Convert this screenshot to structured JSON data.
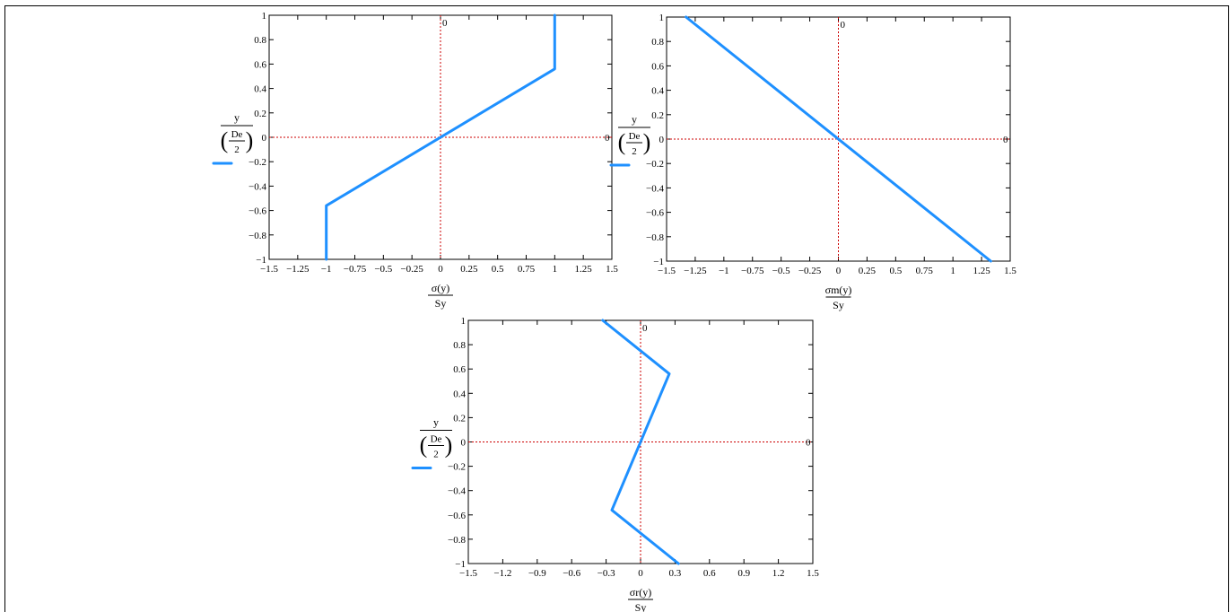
{
  "chart_data": [
    {
      "type": "line",
      "xlabel_num": "σ(y)",
      "xlabel_den": "Sy",
      "ylabel_num": "y",
      "ylabel_inner_num": "De",
      "ylabel_inner_den": "2",
      "xlim": [
        -1.5,
        1.5
      ],
      "ylim": [
        -1,
        1
      ],
      "x_ticks": [
        "−1.5",
        "−1.25",
        "−1",
        "−0.75",
        "−0.5",
        "−0.25",
        "0",
        "0.25",
        "0.5",
        "0.75",
        "1",
        "1.25",
        "1.5"
      ],
      "x_tick_values": [
        -1.5,
        -1.25,
        -1,
        -0.75,
        -0.5,
        -0.25,
        0,
        0.25,
        0.5,
        0.75,
        1,
        1.25,
        1.5
      ],
      "y_ticks": [
        "1",
        "0.8",
        "0.6",
        "0.4",
        "0.2",
        "0",
        "−0.2",
        "−0.4",
        "−0.6",
        "−0.8",
        "−1"
      ],
      "y_tick_values": [
        1,
        0.8,
        0.6,
        0.4,
        0.2,
        0,
        -0.2,
        -0.4,
        -0.6,
        -0.8,
        -1
      ],
      "marker_label": "0",
      "color": "#1e90ff",
      "grid": false,
      "series": [
        {
          "x": [
            -1,
            -1,
            1,
            1
          ],
          "y": [
            -1,
            -0.56,
            0.56,
            1
          ]
        }
      ]
    },
    {
      "type": "line",
      "xlabel_num": "σm(y)",
      "xlabel_den": "Sy",
      "ylabel_num": "y",
      "ylabel_inner_num": "De",
      "ylabel_inner_den": "2",
      "xlim": [
        -1.5,
        1.5
      ],
      "ylim": [
        -1,
        1
      ],
      "x_ticks": [
        "−1.5",
        "−1.25",
        "−1",
        "−0.75",
        "−0.5",
        "−0.25",
        "0",
        "0.25",
        "0.5",
        "0.75",
        "1",
        "1.25",
        "1.5"
      ],
      "x_tick_values": [
        -1.5,
        -1.25,
        -1,
        -0.75,
        -0.5,
        -0.25,
        0,
        0.25,
        0.5,
        0.75,
        1,
        1.25,
        1.5
      ],
      "y_ticks": [
        "1",
        "0.8",
        "0.6",
        "0.4",
        "0.2",
        "0",
        "−0.2",
        "−0.4",
        "−0.6",
        "−0.8",
        "−1"
      ],
      "y_tick_values": [
        1,
        0.8,
        0.6,
        0.4,
        0.2,
        0,
        -0.2,
        -0.4,
        -0.6,
        -0.8,
        -1
      ],
      "marker_label": "0",
      "color": "#1e90ff",
      "grid": false,
      "series": [
        {
          "x": [
            -1.33,
            1.33
          ],
          "y": [
            1,
            -1
          ]
        }
      ]
    },
    {
      "type": "line",
      "xlabel_num": "σr(y)",
      "xlabel_den": "Sy",
      "ylabel_num": "y",
      "ylabel_inner_num": "De",
      "ylabel_inner_den": "2",
      "xlim": [
        -1.5,
        1.5
      ],
      "ylim": [
        -1,
        1
      ],
      "x_ticks": [
        "−1.5",
        "−1.2",
        "−0.9",
        "−0.6",
        "−0.3",
        "0",
        "0.3",
        "0.6",
        "0.9",
        "1.2",
        "1.5"
      ],
      "x_tick_values": [
        -1.5,
        -1.2,
        -0.9,
        -0.6,
        -0.3,
        0,
        0.3,
        0.6,
        0.9,
        1.2,
        1.5
      ],
      "y_ticks": [
        "1",
        "0.8",
        "0.6",
        "0.4",
        "0.2",
        "0",
        "−0.2",
        "−0.4",
        "−0.6",
        "−0.8",
        "−1"
      ],
      "y_tick_values": [
        1,
        0.8,
        0.6,
        0.4,
        0.2,
        0,
        -0.2,
        -0.4,
        -0.6,
        -0.8,
        -1
      ],
      "marker_label": "0",
      "color": "#1e90ff",
      "grid": false,
      "series": [
        {
          "x": [
            -0.33,
            0.25,
            -0.25,
            0.33
          ],
          "y": [
            1,
            0.56,
            -0.56,
            -1
          ]
        }
      ]
    }
  ]
}
